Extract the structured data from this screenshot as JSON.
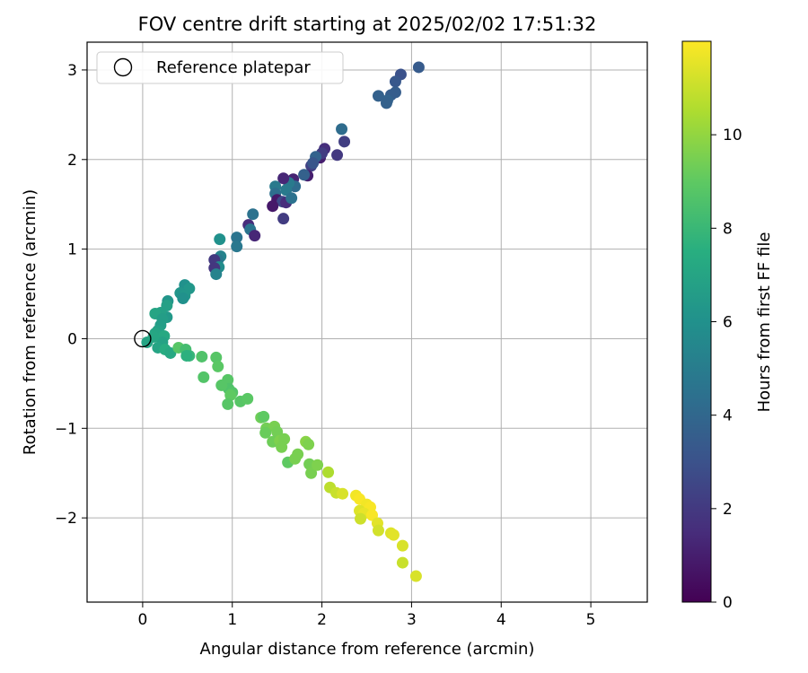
{
  "chart_data": {
    "type": "scatter",
    "title": "FOV centre drift starting at 2025/02/02 17:51:32",
    "xlabel": "Angular distance from reference (arcmin)",
    "ylabel": "Rotation from reference (arcmin)",
    "xlim": [
      -0.62,
      5.63
    ],
    "ylim": [
      -2.94,
      3.31
    ],
    "x_ticks": [
      0,
      1,
      2,
      3,
      4,
      5
    ],
    "y_ticks": [
      -2,
      -1,
      0,
      1,
      2,
      3
    ],
    "grid": true,
    "legend": {
      "placement": "top-left",
      "entries": [
        "Reference platepar"
      ]
    },
    "reference_point": {
      "x": 0,
      "y": 0,
      "label": "Reference platepar"
    },
    "colorbar": {
      "label": "Hours from first FF file",
      "colormap": "viridis",
      "range": [
        0,
        12
      ],
      "ticks": [
        0,
        2,
        4,
        6,
        8,
        10
      ]
    },
    "series": [
      {
        "points": [
          [
            3.08,
            3.03
          ],
          [
            2.88,
            2.95
          ],
          [
            2.82,
            2.87
          ],
          [
            2.82,
            2.75
          ],
          [
            2.63,
            2.71
          ],
          [
            2.77,
            2.72
          ],
          [
            2.73,
            2.66
          ],
          [
            2.72,
            2.63
          ],
          [
            2.22,
            2.34
          ],
          [
            2.25,
            2.2
          ],
          [
            1.98,
            2.02
          ],
          [
            2.03,
            2.12
          ],
          [
            2.17,
            2.05
          ],
          [
            2.0,
            2.07
          ],
          [
            1.88,
            1.93
          ],
          [
            1.93,
            2.03
          ],
          [
            1.9,
            1.96
          ],
          [
            1.84,
            1.82
          ],
          [
            1.8,
            1.83
          ],
          [
            1.68,
            1.78
          ],
          [
            1.7,
            1.7
          ],
          [
            1.63,
            1.74
          ],
          [
            1.57,
            1.79
          ],
          [
            1.6,
            1.66
          ],
          [
            1.48,
            1.7
          ],
          [
            1.48,
            1.62
          ],
          [
            1.5,
            1.55
          ],
          [
            1.56,
            1.53
          ],
          [
            1.6,
            1.52
          ],
          [
            1.66,
            1.57
          ],
          [
            1.57,
            1.34
          ],
          [
            1.45,
            1.48
          ],
          [
            1.23,
            1.39
          ],
          [
            1.18,
            1.27
          ],
          [
            1.2,
            1.22
          ],
          [
            1.25,
            1.15
          ],
          [
            1.05,
            1.13
          ],
          [
            1.05,
            1.03
          ],
          [
            0.86,
            1.11
          ],
          [
            0.87,
            0.92
          ],
          [
            0.84,
            0.88
          ],
          [
            0.8,
            0.88
          ],
          [
            0.85,
            0.8
          ],
          [
            0.8,
            0.79
          ],
          [
            0.82,
            0.72
          ],
          [
            0.47,
            0.6
          ],
          [
            0.52,
            0.56
          ],
          [
            0.42,
            0.51
          ],
          [
            0.47,
            0.48
          ],
          [
            0.45,
            0.45
          ],
          [
            0.28,
            0.42
          ],
          [
            0.27,
            0.37
          ],
          [
            0.27,
            0.24
          ],
          [
            0.2,
            0.29
          ],
          [
            0.14,
            0.28
          ],
          [
            0.22,
            0.22
          ],
          [
            0.2,
            0.15
          ],
          [
            0.17,
            0.09
          ],
          [
            0.14,
            0.06
          ],
          [
            0.24,
            0.03
          ],
          [
            0.22,
            -0.04
          ],
          [
            0.05,
            -0.04
          ],
          [
            0.12,
            0.02
          ],
          [
            0.17,
            -0.1
          ],
          [
            0.25,
            -0.12
          ],
          [
            0.31,
            -0.16
          ],
          [
            0.4,
            -0.1
          ],
          [
            0.48,
            -0.12
          ],
          [
            0.52,
            -0.19
          ],
          [
            0.49,
            -0.19
          ],
          [
            0.66,
            -0.2
          ],
          [
            0.82,
            -0.21
          ],
          [
            0.84,
            -0.31
          ],
          [
            0.68,
            -0.43
          ],
          [
            0.95,
            -0.46
          ],
          [
            0.96,
            -0.56
          ],
          [
            0.88,
            -0.52
          ],
          [
            1.0,
            -0.6
          ],
          [
            0.98,
            -0.63
          ],
          [
            1.09,
            -0.7
          ],
          [
            1.17,
            -0.67
          ],
          [
            0.95,
            -0.73
          ],
          [
            1.32,
            -0.88
          ],
          [
            1.35,
            -0.87
          ],
          [
            1.38,
            -1.0
          ],
          [
            1.47,
            -0.98
          ],
          [
            1.37,
            -1.05
          ],
          [
            1.5,
            -1.04
          ],
          [
            1.45,
            -1.15
          ],
          [
            1.53,
            -1.14
          ],
          [
            1.58,
            -1.12
          ],
          [
            1.55,
            -1.21
          ],
          [
            1.62,
            -1.38
          ],
          [
            1.7,
            -1.34
          ],
          [
            1.73,
            -1.29
          ],
          [
            1.82,
            -1.15
          ],
          [
            1.85,
            -1.18
          ],
          [
            1.86,
            -1.4
          ],
          [
            1.88,
            -1.5
          ],
          [
            1.95,
            -1.41
          ],
          [
            2.07,
            -1.49
          ],
          [
            2.09,
            -1.66
          ],
          [
            2.16,
            -1.72
          ],
          [
            2.23,
            -1.73
          ],
          [
            2.38,
            -1.75
          ],
          [
            2.42,
            -1.79
          ],
          [
            2.5,
            -1.85
          ],
          [
            2.54,
            -1.88
          ],
          [
            2.42,
            -1.92
          ],
          [
            2.47,
            -1.95
          ],
          [
            2.56,
            -1.97
          ],
          [
            2.43,
            -2.01
          ],
          [
            2.62,
            -2.06
          ],
          [
            2.63,
            -2.14
          ],
          [
            2.77,
            -2.17
          ],
          [
            2.8,
            -2.19
          ],
          [
            2.9,
            -2.31
          ],
          [
            2.9,
            -2.5
          ],
          [
            3.05,
            -2.65
          ]
        ],
        "hours": [
          3.4,
          3.0,
          3.3,
          3.5,
          3.7,
          3.5,
          3.8,
          3.7,
          4.2,
          2.2,
          1.0,
          1.6,
          2.0,
          2.1,
          2.3,
          3.8,
          3.2,
          1.0,
          3.7,
          1.2,
          4.2,
          4.9,
          1.3,
          4.9,
          4.9,
          4.3,
          0.8,
          2.6,
          1.5,
          4.5,
          2.1,
          0.8,
          4.5,
          1.5,
          4.6,
          1.3,
          4.6,
          4.8,
          6.0,
          5.3,
          4.9,
          2.0,
          5.8,
          1.9,
          5.3,
          6.0,
          6.3,
          6.2,
          6.3,
          6.0,
          6.2,
          6.8,
          6.4,
          6.8,
          7.0,
          6.6,
          6.6,
          6.8,
          7.0,
          7.2,
          6.9,
          7.0,
          7.1,
          7.0,
          7.4,
          7.2,
          8.8,
          8.3,
          7.9,
          7.6,
          8.6,
          8.8,
          8.9,
          8.7,
          8.8,
          8.6,
          8.8,
          8.7,
          9.0,
          8.8,
          8.9,
          8.8,
          9.3,
          9.0,
          9.4,
          9.5,
          9.2,
          9.4,
          9.3,
          9.6,
          9.5,
          9.5,
          9.0,
          9.5,
          9.5,
          9.8,
          9.6,
          9.4,
          9.5,
          9.6,
          10.5,
          10.8,
          11.0,
          11.3,
          11.8,
          11.9,
          11.8,
          11.9,
          11.4,
          11.6,
          11.9,
          11.1,
          11.5,
          11.2,
          11.4,
          11.5,
          11.3,
          11.0,
          11.3
        ]
      }
    ]
  }
}
